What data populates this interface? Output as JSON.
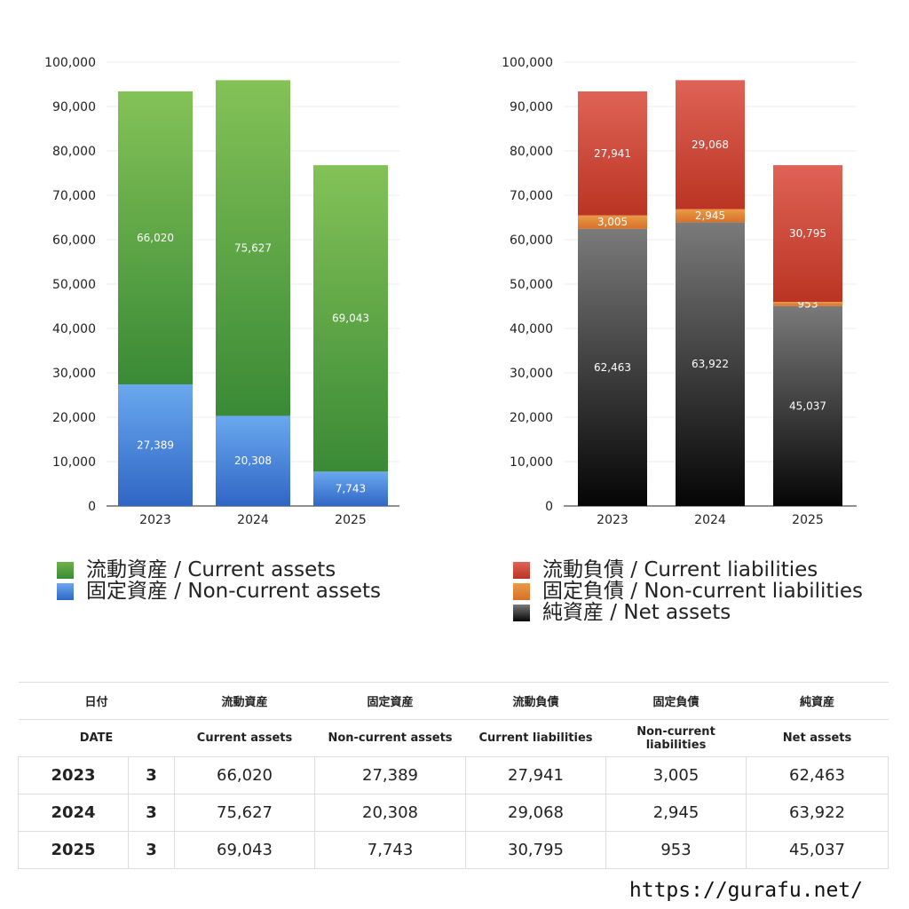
{
  "chart_data": [
    {
      "type": "bar",
      "stacked": true,
      "categories": [
        "2023",
        "2024",
        "2025"
      ],
      "ylim": [
        0,
        100000
      ],
      "yticks": [
        0,
        10000,
        20000,
        30000,
        40000,
        50000,
        60000,
        70000,
        80000,
        90000,
        100000
      ],
      "ytick_labels": [
        "0",
        "10,000",
        "20,000",
        "30,000",
        "40,000",
        "50,000",
        "60,000",
        "70,000",
        "80,000",
        "90,000",
        "100,000"
      ],
      "grid": true,
      "series": [
        {
          "name": "固定資産 / Non-current assets",
          "values": [
            27389,
            20308,
            7743
          ],
          "labels": [
            "27,389",
            "20,308",
            "7,743"
          ],
          "color_top": "#6aa8ef",
          "color_bottom": "#2f66c4"
        },
        {
          "name": "流動資産 / Current assets",
          "values": [
            66020,
            75627,
            69043
          ],
          "labels": [
            "66,020",
            "75,627",
            "69,043"
          ],
          "color_top": "#84c257",
          "color_bottom": "#3a8a36"
        }
      ],
      "legend": {
        "placement": "bottom",
        "items": [
          {
            "label": "流動資産 / Current assets",
            "color": "#4c9e3c"
          },
          {
            "label": "固定資産 / Non-current assets",
            "color": "#4a8ae0"
          }
        ]
      }
    },
    {
      "type": "bar",
      "stacked": true,
      "categories": [
        "2023",
        "2024",
        "2025"
      ],
      "ylim": [
        0,
        100000
      ],
      "yticks": [
        0,
        10000,
        20000,
        30000,
        40000,
        50000,
        60000,
        70000,
        80000,
        90000,
        100000
      ],
      "ytick_labels": [
        "0",
        "10,000",
        "20,000",
        "30,000",
        "40,000",
        "50,000",
        "60,000",
        "70,000",
        "80,000",
        "90,000",
        "100,000"
      ],
      "grid": true,
      "series": [
        {
          "name": "純資産 / Net assets",
          "values": [
            62463,
            63922,
            45037
          ],
          "labels": [
            "62,463",
            "63,922",
            "45,037"
          ],
          "color_top": "#7a7a7a",
          "color_bottom": "#050505"
        },
        {
          "name": "固定負債 / Non-current liabilities",
          "values": [
            3005,
            2945,
            953
          ],
          "labels": [
            "3,005",
            "2,945",
            "953"
          ],
          "color_top": "#eb9a45",
          "color_bottom": "#d7702a"
        },
        {
          "name": "流動負債 / Current liabilities",
          "values": [
            27941,
            29068,
            30795
          ],
          "labels": [
            "27,941",
            "29,068",
            "30,795"
          ],
          "color_top": "#de6356",
          "color_bottom": "#bb3423"
        }
      ],
      "legend": {
        "placement": "bottom",
        "items": [
          {
            "label": "流動負債 / Current liabilities",
            "color": "#d14a3a"
          },
          {
            "label": "固定負債 / Non-current liabilities",
            "color": "#e88738"
          },
          {
            "label": "純資産 / Net assets",
            "color": "#222222"
          }
        ]
      }
    }
  ],
  "table": {
    "header_jp": {
      "date": "日付",
      "current_assets": "流動資産",
      "noncurrent_assets": "固定資産",
      "current_liabilities": "流動負債",
      "noncurrent_liabilities": "固定負債",
      "net_assets": "純資産"
    },
    "header_en": {
      "date": "DATE",
      "current_assets": "Current assets",
      "noncurrent_assets": "Non-current assets",
      "current_liabilities": "Current liabilities",
      "noncurrent_liabilities": "Non-current liabilities",
      "net_assets": "Net assets"
    },
    "rows": [
      {
        "year": "2023",
        "month": "3",
        "current_assets": "66,020",
        "noncurrent_assets": "27,389",
        "current_liabilities": "27,941",
        "noncurrent_liabilities": "3,005",
        "net_assets": "62,463"
      },
      {
        "year": "2024",
        "month": "3",
        "current_assets": "75,627",
        "noncurrent_assets": "20,308",
        "current_liabilities": "29,068",
        "noncurrent_liabilities": "2,945",
        "net_assets": "63,922"
      },
      {
        "year": "2025",
        "month": "3",
        "current_assets": "69,043",
        "noncurrent_assets": "7,743",
        "current_liabilities": "30,795",
        "noncurrent_liabilities": "953",
        "net_assets": "45,037"
      }
    ]
  },
  "footer": {
    "site": "https://gurafu.net/"
  }
}
